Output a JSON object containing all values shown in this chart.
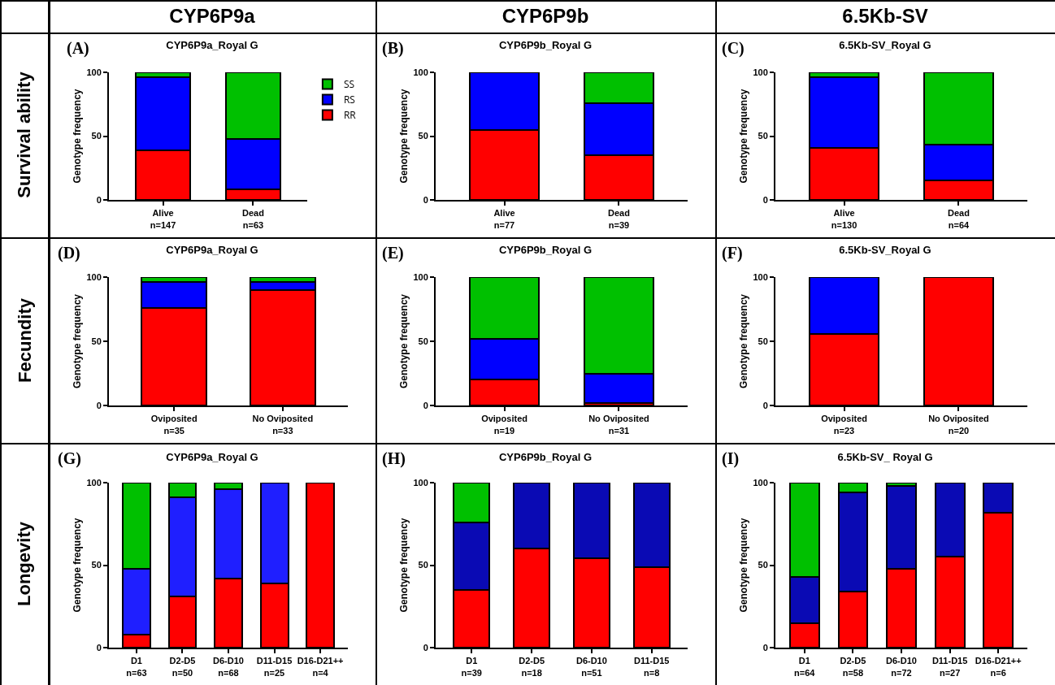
{
  "chart_data": [
    {
      "type": "other",
      "annotations": [
        "CYP6P9a",
        "CYP6P9b",
        "6.5Kb-SV",
        "Survival ability",
        "Fecundity",
        "Longevity"
      ]
    },
    {
      "type": "bar",
      "stacked": true,
      "title": "CYP6P9a_Royal G",
      "annotations": [
        "(A)"
      ],
      "ylabel": "Genotype frequency",
      "categories": [
        "Alive\nn=147",
        "Dead\nn=63"
      ],
      "ylim": [
        0,
        100
      ],
      "yticks": [
        0,
        50,
        100
      ],
      "grid": false,
      "legend": "top right",
      "series": [
        {
          "name": "RR",
          "color": "#ff0000",
          "values": [
            39,
            8
          ]
        },
        {
          "name": "RS",
          "color": "#0000ff",
          "values": [
            57,
            40
          ]
        },
        {
          "name": "SS",
          "color": "#00c000",
          "values": [
            4,
            52
          ]
        }
      ]
    },
    {
      "type": "bar",
      "stacked": true,
      "title": "CYP6P9b_Royal G",
      "annotations": [
        "(B)"
      ],
      "ylabel": "Genotype frequency",
      "categories": [
        "Alive\nn=77",
        "Dead\nn=39"
      ],
      "ylim": [
        0,
        100
      ],
      "yticks": [
        0,
        50,
        100
      ],
      "grid": false,
      "legend": false,
      "series": [
        {
          "color": "#ff0000",
          "values": [
            55,
            35
          ]
        },
        {
          "color": "#0000ff",
          "values": [
            45,
            41
          ]
        },
        {
          "color": "#00c000",
          "values": [
            0,
            24
          ]
        }
      ]
    },
    {
      "type": "bar",
      "stacked": true,
      "title": "6.5Kb-SV_Royal G",
      "annotations": [
        "(C)"
      ],
      "ylabel": "Genotype frequency",
      "categories": [
        "Alive\nn=130",
        "Dead\nn=64"
      ],
      "ylim": [
        0,
        100
      ],
      "yticks": [
        0,
        50,
        100
      ],
      "grid": false,
      "legend": false,
      "series": [
        {
          "color": "#ff0000",
          "values": [
            41,
            15
          ]
        },
        {
          "color": "#0000ff",
          "values": [
            55,
            28
          ]
        },
        {
          "color": "#00c000",
          "values": [
            4,
            57
          ]
        }
      ]
    },
    {
      "type": "bar",
      "stacked": true,
      "title": "CYP6P9a_Royal G",
      "annotations": [
        "(D)"
      ],
      "ylabel": "Genotype frequency",
      "categories": [
        "Oviposited\nn=35",
        "No Oviposited\nn=33"
      ],
      "ylim": [
        0,
        100
      ],
      "yticks": [
        0,
        50,
        100
      ],
      "grid": false,
      "legend": false,
      "series": [
        {
          "color": "#ff0000",
          "values": [
            76,
            90
          ]
        },
        {
          "color": "#0000ff",
          "values": [
            20,
            6
          ]
        },
        {
          "color": "#00c000",
          "values": [
            4,
            4
          ]
        }
      ]
    },
    {
      "type": "bar",
      "stacked": true,
      "title": "CYP6P9b_Royal G",
      "annotations": [
        "(E)"
      ],
      "ylabel": "Genotype frequency",
      "categories": [
        "Oviposited\nn=19",
        "No Oviposited\nn=31"
      ],
      "ylim": [
        0,
        100
      ],
      "yticks": [
        0,
        50,
        100
      ],
      "grid": false,
      "legend": false,
      "series": [
        {
          "color": "#ff0000",
          "values": [
            20,
            2
          ]
        },
        {
          "color": "#0000ff",
          "values": [
            32,
            23
          ]
        },
        {
          "color": "#00c000",
          "values": [
            48,
            75
          ]
        }
      ]
    },
    {
      "type": "bar",
      "stacked": true,
      "title": "6.5Kb-SV_Royal G",
      "annotations": [
        "(F)"
      ],
      "ylabel": "Genotype frequency",
      "categories": [
        "Oviposited\nn=23",
        "No Oviposited\nn=20"
      ],
      "ylim": [
        0,
        100
      ],
      "yticks": [
        0,
        50,
        100
      ],
      "grid": false,
      "legend": false,
      "series": [
        {
          "color": "#ff0000",
          "values": [
            56,
            100
          ]
        },
        {
          "color": "#0000ff",
          "values": [
            44,
            0
          ]
        },
        {
          "color": "#00c000",
          "values": [
            0,
            0
          ]
        }
      ]
    },
    {
      "type": "bar",
      "stacked": true,
      "title": "CYP6P9a_Royal G",
      "annotations": [
        "(G)"
      ],
      "ylabel": "Genotype frequency",
      "categories": [
        "D1\nn=63",
        "D2-D5\nn=50",
        "D6-D10\nn=68",
        "D11-D15\nn=25",
        "D16-D21++\nn=4"
      ],
      "ylim": [
        0,
        100
      ],
      "yticks": [
        0,
        50,
        100
      ],
      "grid": false,
      "legend": false,
      "series": [
        {
          "color": "#ff0000",
          "values": [
            8,
            31,
            42,
            39,
            100
          ]
        },
        {
          "color": "#1f1fff",
          "values": [
            40,
            60,
            54,
            61,
            0
          ]
        },
        {
          "color": "#00c000",
          "values": [
            52,
            9,
            4,
            0,
            0
          ]
        }
      ]
    },
    {
      "type": "bar",
      "stacked": true,
      "title": "CYP6P9b_Royal G",
      "annotations": [
        "(H)"
      ],
      "ylabel": "Genotype frequency",
      "categories": [
        "D1\nn=39",
        "D2-D5\nn=18",
        "D6-D10\nn=51",
        "D11-D15\nn=8"
      ],
      "ylim": [
        0,
        100
      ],
      "yticks": [
        0,
        50,
        100
      ],
      "grid": false,
      "legend": false,
      "series": [
        {
          "color": "#ff0000",
          "values": [
            35,
            60,
            54,
            49
          ]
        },
        {
          "color": "#0a0ab4",
          "values": [
            41,
            40,
            46,
            51
          ]
        },
        {
          "color": "#00c000",
          "values": [
            24,
            0,
            0,
            0
          ]
        }
      ]
    },
    {
      "type": "bar",
      "stacked": true,
      "title": "6.5Kb-SV_ Royal G",
      "annotations": [
        "(I)"
      ],
      "ylabel": "Genotype frequency",
      "categories": [
        "D1\nn=64",
        "D2-D5\nn=58",
        "D6-D10\nn=72",
        "D11-D15\nn=27",
        "D16-D21++\nn=6"
      ],
      "ylim": [
        0,
        100
      ],
      "yticks": [
        0,
        50,
        100
      ],
      "grid": false,
      "legend": false,
      "series": [
        {
          "color": "#ff0000",
          "values": [
            15,
            34,
            48,
            55,
            82
          ]
        },
        {
          "color": "#0a0ab4",
          "values": [
            28,
            60,
            50,
            45,
            18
          ]
        },
        {
          "color": "#00c000",
          "values": [
            57,
            6,
            2,
            0,
            0
          ]
        }
      ]
    }
  ]
}
